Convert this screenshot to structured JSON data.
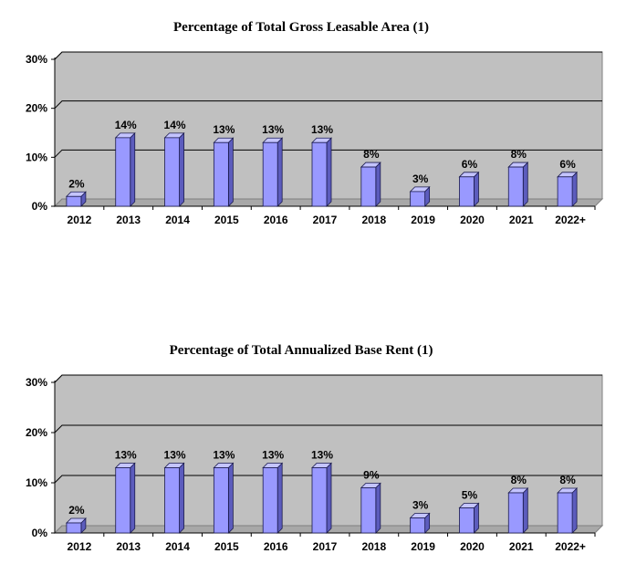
{
  "colors": {
    "plot_wall": "#c0c0c0",
    "plot_floor": "#a8a8a8",
    "bar_front": "#9999ff",
    "bar_side": "#5c5cbd",
    "bar_top": "#c4c4ff",
    "bar_stroke": "#1a1a4d",
    "gridline": "#000000"
  },
  "chart_data": [
    {
      "type": "bar",
      "title": "Percentage of Total Gross Leasable Area (1)",
      "categories": [
        "2012",
        "2013",
        "2014",
        "2015",
        "2016",
        "2017",
        "2018",
        "2019",
        "2020",
        "2021",
        "2022+"
      ],
      "values": [
        2,
        14,
        14,
        13,
        13,
        13,
        8,
        3,
        6,
        8,
        6
      ],
      "data_labels": [
        "2%",
        "14%",
        "14%",
        "13%",
        "13%",
        "13%",
        "8%",
        "3%",
        "6%",
        "8%",
        "6%"
      ],
      "yticks": [
        "0%",
        "10%",
        "20%",
        "30%"
      ],
      "ylim": [
        0,
        30
      ],
      "grid": true,
      "legend": "none",
      "style": "3d"
    },
    {
      "type": "bar",
      "title": "Percentage of Total Annualized Base Rent (1)",
      "categories": [
        "2012",
        "2013",
        "2014",
        "2015",
        "2016",
        "2017",
        "2018",
        "2019",
        "2020",
        "2021",
        "2022+"
      ],
      "values": [
        2,
        13,
        13,
        13,
        13,
        13,
        9,
        3,
        5,
        8,
        8
      ],
      "data_labels": [
        "2%",
        "13%",
        "13%",
        "13%",
        "13%",
        "13%",
        "9%",
        "3%",
        "5%",
        "8%",
        "8%"
      ],
      "yticks": [
        "0%",
        "10%",
        "20%",
        "30%"
      ],
      "ylim": [
        0,
        30
      ],
      "grid": true,
      "legend": "none",
      "style": "3d"
    }
  ]
}
